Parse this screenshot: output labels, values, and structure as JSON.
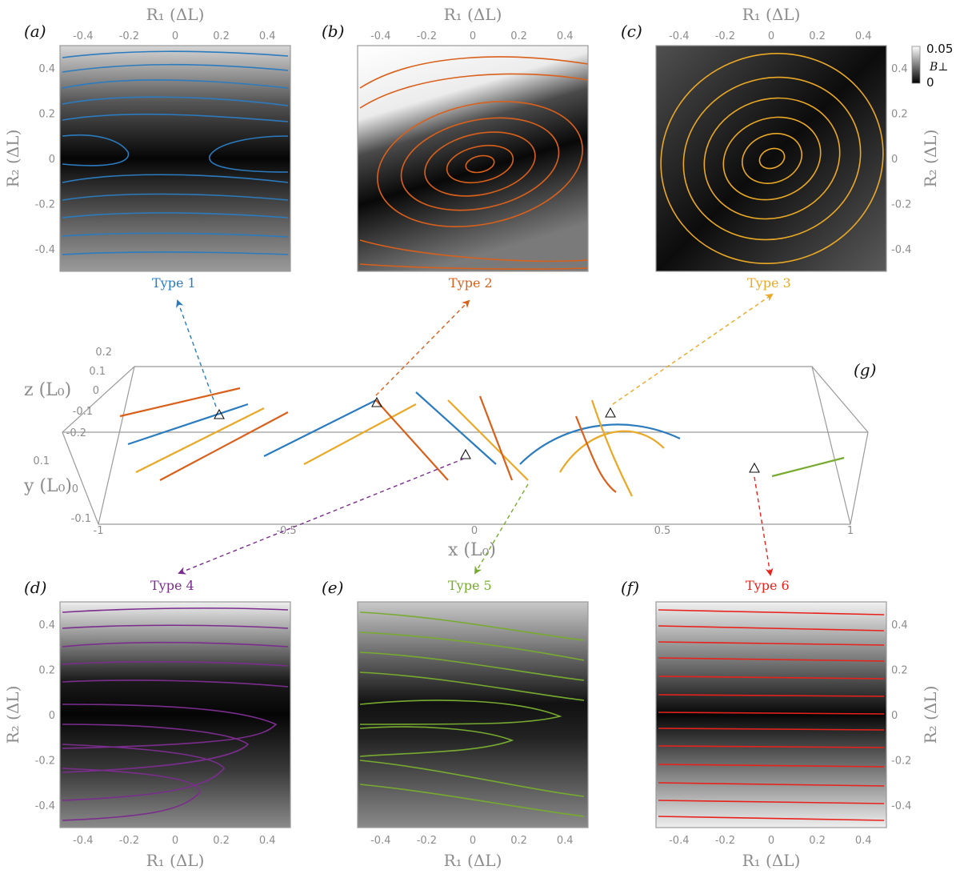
{
  "panels": {
    "a": {
      "label": "(a)",
      "type": "Type 1",
      "color": "#2b7bbf"
    },
    "b": {
      "label": "(b)",
      "type": "Type 2",
      "color": "#d9601b"
    },
    "c": {
      "label": "(c)",
      "type": "Type 3",
      "color": "#e9a825"
    },
    "d": {
      "label": "(d)",
      "type": "Type 4",
      "color": "#7b2d8e"
    },
    "e": {
      "label": "(e)",
      "type": "Type 5",
      "color": "#76ab2f"
    },
    "f": {
      "label": "(f)",
      "type": "Type 6",
      "color": "#e8221b"
    }
  },
  "panel_axes": {
    "r1_label": "R₁ (ΔL)",
    "r2_label": "R₂ (ΔL)",
    "r1_ticks": [
      "-0.4",
      "-0.2",
      "0",
      "0.2",
      "0.4"
    ],
    "r2_ticks": [
      "0.4",
      "0.2",
      "0",
      "-0.2",
      "-0.4"
    ],
    "range": [
      -0.5,
      0.5
    ]
  },
  "colorbar": {
    "max_label": "0.05",
    "min_label": "0",
    "quantity": "B⊥"
  },
  "panel_g": {
    "label": "(g)",
    "x_label": "x (L₀)",
    "y_label": "y (L₀)",
    "z_label": "z (L₀)",
    "x_ticks": [
      "-1",
      "-0.5",
      "0",
      "0.5",
      "1"
    ],
    "y_ticks": [
      "0.1",
      "0",
      "-0.1"
    ],
    "z_ticks": [
      "0.2",
      "0.1",
      "0",
      "-0.1",
      "-0.2"
    ]
  }
}
